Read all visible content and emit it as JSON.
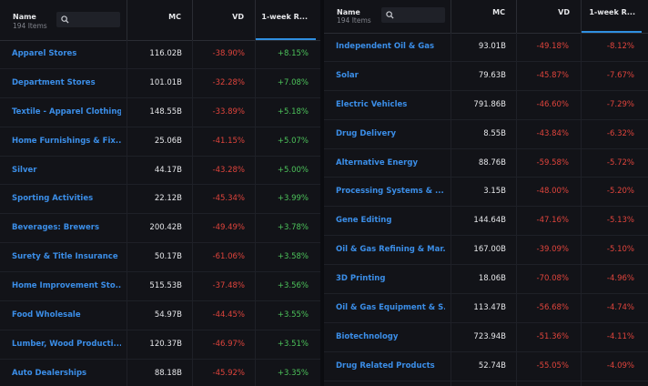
{
  "left": {
    "header": {
      "name_label": "Name",
      "count_label": "194 Items",
      "mc_label": "MC",
      "vd_label": "VD",
      "week_label": "1-week R..."
    },
    "rows": [
      {
        "name": "Apparel Stores",
        "mc": "116.02B",
        "vd": "-38.90%",
        "week": "+8.15%",
        "dir": "pos"
      },
      {
        "name": "Department Stores",
        "mc": "101.01B",
        "vd": "-32.28%",
        "week": "+7.08%",
        "dir": "pos"
      },
      {
        "name": "Textile - Apparel Clothing",
        "mc": "148.55B",
        "vd": "-33.89%",
        "week": "+5.18%",
        "dir": "pos"
      },
      {
        "name": "Home Furnishings & Fix...",
        "mc": "25.06B",
        "vd": "-41.15%",
        "week": "+5.07%",
        "dir": "pos"
      },
      {
        "name": "Silver",
        "mc": "44.17B",
        "vd": "-43.28%",
        "week": "+5.00%",
        "dir": "pos"
      },
      {
        "name": "Sporting Activities",
        "mc": "22.12B",
        "vd": "-45.34%",
        "week": "+3.99%",
        "dir": "pos"
      },
      {
        "name": "Beverages: Brewers",
        "mc": "200.42B",
        "vd": "-49.49%",
        "week": "+3.78%",
        "dir": "pos"
      },
      {
        "name": "Surety & Title Insurance",
        "mc": "50.17B",
        "vd": "-61.06%",
        "week": "+3.58%",
        "dir": "pos"
      },
      {
        "name": "Home Improvement Sto...",
        "mc": "515.53B",
        "vd": "-37.48%",
        "week": "+3.56%",
        "dir": "pos"
      },
      {
        "name": "Food Wholesale",
        "mc": "54.97B",
        "vd": "-44.45%",
        "week": "+3.55%",
        "dir": "pos"
      },
      {
        "name": "Lumber, Wood Producti...",
        "mc": "120.37B",
        "vd": "-46.97%",
        "week": "+3.51%",
        "dir": "pos"
      },
      {
        "name": "Auto Dealerships",
        "mc": "88.18B",
        "vd": "-45.92%",
        "week": "+3.35%",
        "dir": "pos"
      }
    ]
  },
  "right": {
    "header": {
      "name_label": "Name",
      "count_label": "194 Items",
      "mc_label": "MC",
      "vd_label": "VD",
      "week_label": "1-week R..."
    },
    "rows": [
      {
        "name": "Independent Oil & Gas",
        "mc": "93.01B",
        "vd": "-49.18%",
        "week": "-8.12%",
        "dir": "neg"
      },
      {
        "name": "Solar",
        "mc": "79.63B",
        "vd": "-45.87%",
        "week": "-7.67%",
        "dir": "neg"
      },
      {
        "name": "Electric Vehicles",
        "mc": "791.86B",
        "vd": "-46.60%",
        "week": "-7.29%",
        "dir": "neg"
      },
      {
        "name": "Drug Delivery",
        "mc": "8.55B",
        "vd": "-43.84%",
        "week": "-6.32%",
        "dir": "neg"
      },
      {
        "name": "Alternative Energy",
        "mc": "88.76B",
        "vd": "-59.58%",
        "week": "-5.72%",
        "dir": "neg"
      },
      {
        "name": "Processing Systems & ...",
        "mc": "3.15B",
        "vd": "-48.00%",
        "week": "-5.20%",
        "dir": "neg"
      },
      {
        "name": "Gene Editing",
        "mc": "144.64B",
        "vd": "-47.16%",
        "week": "-5.13%",
        "dir": "neg"
      },
      {
        "name": "Oil & Gas Refining & Mar...",
        "mc": "167.00B",
        "vd": "-39.09%",
        "week": "-5.10%",
        "dir": "neg"
      },
      {
        "name": "3D Printing",
        "mc": "18.06B",
        "vd": "-70.08%",
        "week": "-4.96%",
        "dir": "neg"
      },
      {
        "name": "Oil & Gas Equipment & S...",
        "mc": "113.47B",
        "vd": "-56.68%",
        "week": "-4.74%",
        "dir": "neg"
      },
      {
        "name": "Biotechnology",
        "mc": "723.94B",
        "vd": "-51.36%",
        "week": "-4.11%",
        "dir": "neg"
      },
      {
        "name": "Drug Related Products",
        "mc": "52.74B",
        "vd": "-55.05%",
        "week": "-4.09%",
        "dir": "neg"
      }
    ]
  },
  "colors": {
    "positive": "#4cc25a",
    "negative": "#e0443c",
    "link": "#3b8ee8",
    "accent": "#2f8fe0"
  },
  "icons": {
    "search": "magnifier-glass"
  }
}
